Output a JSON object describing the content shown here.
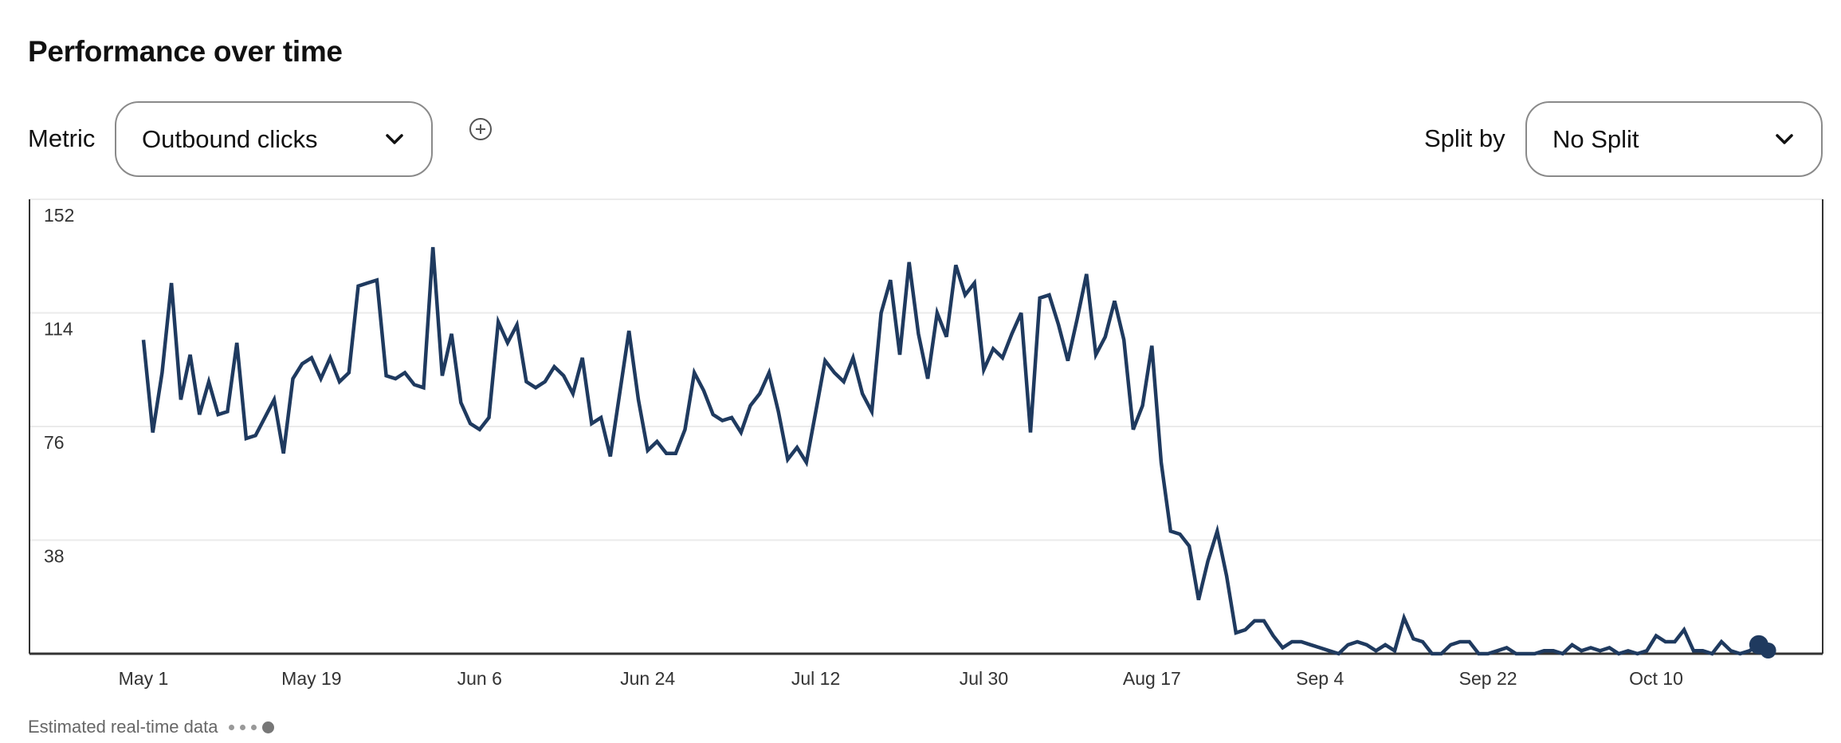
{
  "header": {
    "title": "Performance over time"
  },
  "controls": {
    "metric_label": "Metric",
    "metric_value": "Outbound clicks",
    "add_metric_icon": "plus-circle-icon",
    "split_label": "Split by",
    "split_value": "No Split"
  },
  "legend": {
    "estimated_label": "Estimated real-time data"
  },
  "colors": {
    "line": "#1f3a5f",
    "grid": "#ebebeb",
    "axis": "#333333",
    "tick_text": "#333333"
  },
  "chart_data": {
    "type": "line",
    "title": "Performance over time",
    "xlabel": "",
    "ylabel": "Outbound clicks",
    "ylim": [
      0,
      152
    ],
    "yticks": [
      38,
      76,
      114,
      152
    ],
    "xticks": [
      {
        "label": "May 1",
        "day": 0
      },
      {
        "label": "May 19",
        "day": 18
      },
      {
        "label": "Jun 6",
        "day": 36
      },
      {
        "label": "Jun 24",
        "day": 54
      },
      {
        "label": "Jul 12",
        "day": 72
      },
      {
        "label": "Jul 30",
        "day": 90
      },
      {
        "label": "Aug 17",
        "day": 108
      },
      {
        "label": "Sep 4",
        "day": 126
      },
      {
        "label": "Sep 22",
        "day": 144
      },
      {
        "label": "Oct 10",
        "day": 162
      }
    ],
    "grid": true,
    "start_date": "May 1",
    "x_unit": "day",
    "estimated_points": 2,
    "series": [
      {
        "name": "Outbound clicks",
        "values": [
          105,
          74,
          94,
          124,
          85,
          100,
          80,
          91,
          80,
          81,
          104,
          72,
          73,
          79,
          85,
          67,
          92,
          97,
          99,
          92,
          99,
          91,
          94,
          123,
          124,
          125,
          93,
          92,
          94,
          90,
          89,
          136,
          93,
          107,
          84,
          77,
          75,
          79,
          111,
          104,
          110,
          91,
          89,
          91,
          96,
          93,
          87,
          99,
          77,
          79,
          66,
          87,
          108,
          85,
          68,
          71,
          67,
          67,
          75,
          94,
          88,
          80,
          78,
          79,
          74,
          83,
          87,
          94,
          81,
          65,
          69,
          64,
          81,
          98,
          94,
          91,
          99,
          87,
          81,
          114,
          125,
          100,
          131,
          107,
          92,
          114,
          106,
          130,
          120,
          124,
          95,
          102,
          99,
          107,
          114,
          74,
          119,
          120,
          110,
          98,
          112,
          127,
          100,
          106,
          118,
          105,
          75,
          83,
          103,
          64,
          41,
          40,
          36,
          18,
          31,
          41,
          26,
          7,
          8,
          11,
          11,
          6,
          2,
          4,
          4,
          3,
          2,
          1,
          0,
          3,
          4,
          3,
          1,
          3,
          1,
          12,
          5,
          4,
          0,
          0,
          3,
          4,
          4,
          0,
          0,
          1,
          2,
          0,
          0,
          0,
          1,
          1,
          0,
          3,
          1,
          2,
          1,
          2,
          0,
          1,
          0,
          1,
          6,
          4,
          4,
          8,
          1,
          1,
          0,
          4,
          1,
          0,
          1,
          3,
          1
        ]
      }
    ]
  }
}
